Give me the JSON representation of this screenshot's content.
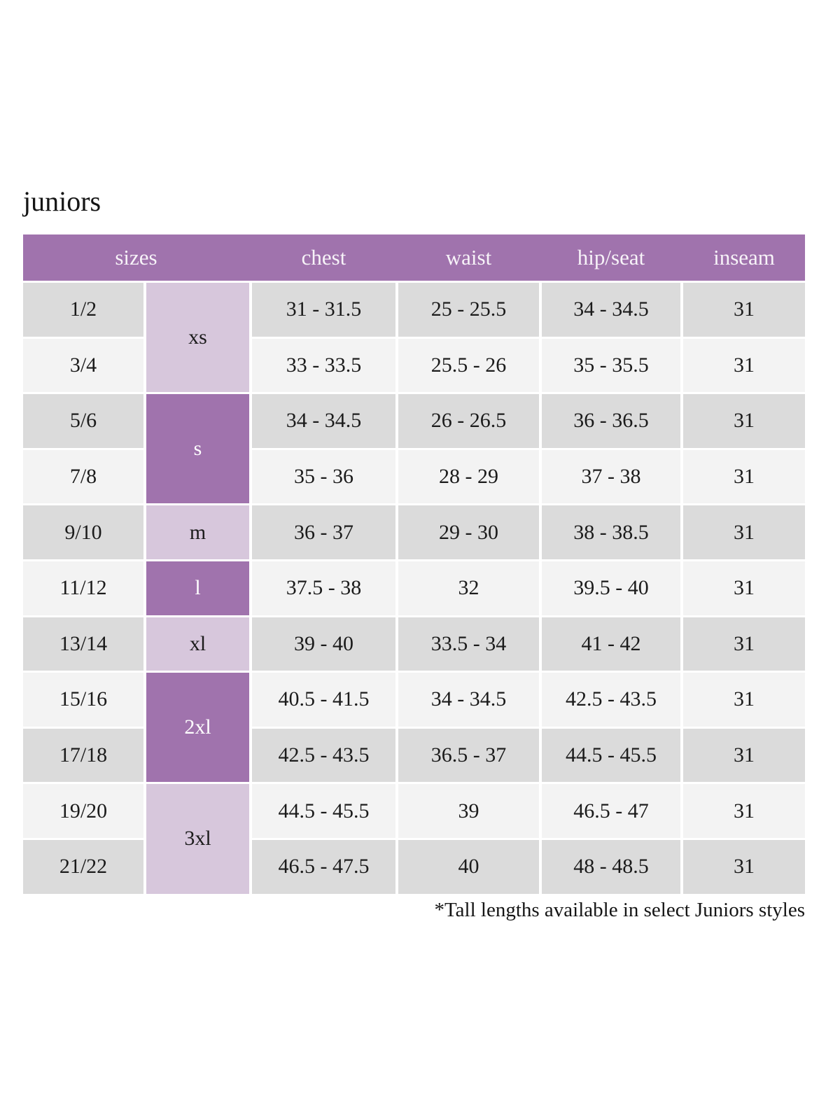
{
  "page": {
    "title": "juniors",
    "footnote": "*Tall lengths available in select Juniors styles"
  },
  "colors": {
    "header_bg": "#a073ad",
    "size_cell_dark": "#a073ad",
    "size_cell_light": "#d7c7dc",
    "row_gray": "#dbdbdb",
    "row_light": "#f3f3f3",
    "header_text": "#ffffff",
    "body_text": "#1b1b1b"
  },
  "chart_data": {
    "type": "table",
    "title": "juniors",
    "columns": [
      "sizes",
      "chest",
      "waist",
      "hip/seat",
      "inseam"
    ],
    "size_groups": [
      {
        "label": "xs",
        "rows_spanned": 2,
        "shade": "light"
      },
      {
        "label": "s",
        "rows_spanned": 2,
        "shade": "dark"
      },
      {
        "label": "m",
        "rows_spanned": 1,
        "shade": "light"
      },
      {
        "label": "l",
        "rows_spanned": 1,
        "shade": "dark"
      },
      {
        "label": "xl",
        "rows_spanned": 1,
        "shade": "light"
      },
      {
        "label": "2xl",
        "rows_spanned": 2,
        "shade": "dark"
      },
      {
        "label": "3xl",
        "rows_spanned": 2,
        "shade": "light"
      }
    ],
    "rows": [
      {
        "size": "1/2",
        "group": "xs",
        "chest": "31 - 31.5",
        "waist": "25 - 25.5",
        "hip_seat": "34 - 34.5",
        "inseam": "31"
      },
      {
        "size": "3/4",
        "group": "xs",
        "chest": "33 - 33.5",
        "waist": "25.5 - 26",
        "hip_seat": "35 - 35.5",
        "inseam": "31"
      },
      {
        "size": "5/6",
        "group": "s",
        "chest": "34 - 34.5",
        "waist": "26 - 26.5",
        "hip_seat": "36 - 36.5",
        "inseam": "31"
      },
      {
        "size": "7/8",
        "group": "s",
        "chest": "35 - 36",
        "waist": "28 - 29",
        "hip_seat": "37 - 38",
        "inseam": "31"
      },
      {
        "size": "9/10",
        "group": "m",
        "chest": "36 - 37",
        "waist": "29 - 30",
        "hip_seat": "38 - 38.5",
        "inseam": "31"
      },
      {
        "size": "11/12",
        "group": "l",
        "chest": "37.5 - 38",
        "waist": "32",
        "hip_seat": "39.5 - 40",
        "inseam": "31"
      },
      {
        "size": "13/14",
        "group": "xl",
        "chest": "39 - 40",
        "waist": "33.5 - 34",
        "hip_seat": "41 - 42",
        "inseam": "31"
      },
      {
        "size": "15/16",
        "group": "2xl",
        "chest": "40.5 - 41.5",
        "waist": "34 - 34.5",
        "hip_seat": "42.5 - 43.5",
        "inseam": "31"
      },
      {
        "size": "17/18",
        "group": "2xl",
        "chest": "42.5 - 43.5",
        "waist": "36.5 - 37",
        "hip_seat": "44.5 - 45.5",
        "inseam": "31"
      },
      {
        "size": "19/20",
        "group": "3xl",
        "chest": "44.5 - 45.5",
        "waist": "39",
        "hip_seat": "46.5 - 47",
        "inseam": "31"
      },
      {
        "size": "21/22",
        "group": "3xl",
        "chest": "46.5 - 47.5",
        "waist": "40",
        "hip_seat": "48 - 48.5",
        "inseam": "31"
      }
    ],
    "footnote": "*Tall lengths available in select Juniors styles"
  }
}
